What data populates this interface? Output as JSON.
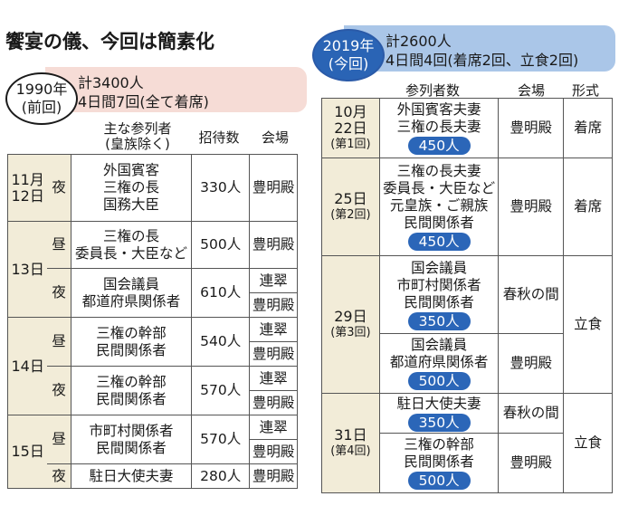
{
  "title": "饗宴の儀、今回は簡素化",
  "y1990": {
    "label_line1": "1990年",
    "label_line2": "(前回)",
    "summary_line1": "計3400人",
    "summary_line2": "4日間7回(全て着席)",
    "headers": {
      "attendees_line1": "主な参列者",
      "attendees_line2": "(皇族除く)",
      "invited": "招待数",
      "venue": "会場"
    },
    "rows": {
      "d11": {
        "date_line1": "11月",
        "date_line2": "12日",
        "time": "夜",
        "att1": "外国賓客",
        "att2": "三権の長",
        "att3": "国務大臣",
        "count": "330人",
        "venue": "豊明殿"
      },
      "d13": {
        "date": "13日",
        "day": {
          "time": "昼",
          "att1": "三権の長",
          "att2": "委員長・大臣など",
          "count": "500人",
          "venue": "豊明殿"
        },
        "night": {
          "time": "夜",
          "att1": "国会議員",
          "att2": "都道府県関係者",
          "count": "610人",
          "venue1": "連翠",
          "venue2": "豊明殿"
        }
      },
      "d14": {
        "date": "14日",
        "day": {
          "time": "昼",
          "att1": "三権の幹部",
          "att2": "民間関係者",
          "count": "540人",
          "venue1": "連翠",
          "venue2": "豊明殿"
        },
        "night": {
          "time": "夜",
          "att1": "三権の幹部",
          "att2": "民間関係者",
          "count": "570人",
          "venue1": "連翠",
          "venue2": "豊明殿"
        }
      },
      "d15": {
        "date": "15日",
        "day": {
          "time": "昼",
          "att1": "市町村関係者",
          "att2": "民間関係者",
          "count": "570人",
          "venue1": "連翠",
          "venue2": "豊明殿"
        },
        "night": {
          "time": "夜",
          "att1": "駐日大使夫妻",
          "count": "280人",
          "venue": "豊明殿"
        }
      }
    }
  },
  "y2019": {
    "label_line1": "2019年",
    "label_line2": "(今回)",
    "summary_line1": "計2600人",
    "summary_line2": "4日間4回(着席2回、立食2回)",
    "headers": {
      "attendees": "参列者数",
      "venue": "会場",
      "format": "形式"
    },
    "rows": {
      "r1": {
        "date_line1": "10月",
        "date_line2": "22日",
        "session": "(第1回)",
        "att1": "外国賓客夫妻",
        "att2": "三権の長夫妻",
        "count": "450人",
        "venue": "豊明殿",
        "format": "着席"
      },
      "r2": {
        "date": "25日",
        "session": "(第2回)",
        "att1": "三権の長夫妻",
        "att2": "委員長・大臣など",
        "att3": "元皇族・ご親族",
        "att4": "民間関係者",
        "count": "450人",
        "venue": "豊明殿",
        "format": "着席"
      },
      "r3": {
        "date": "29日",
        "session": "(第3回)",
        "a": {
          "att1": "国会議員",
          "att2": "市町村関係者",
          "att3": "民間関係者",
          "count": "350人",
          "venue": "春秋の間"
        },
        "b": {
          "att1": "国会議員",
          "att2": "都道府県関係者",
          "count": "500人",
          "venue": "豊明殿"
        },
        "format": "立食"
      },
      "r4": {
        "date": "31日",
        "session": "(第4回)",
        "a": {
          "att1": "駐日大使夫妻",
          "count": "350人",
          "venue": "春秋の間"
        },
        "b": {
          "att1": "三権の幹部",
          "att2": "民間関係者",
          "count": "500人",
          "venue": "豊明殿"
        },
        "format": "立食"
      }
    }
  }
}
